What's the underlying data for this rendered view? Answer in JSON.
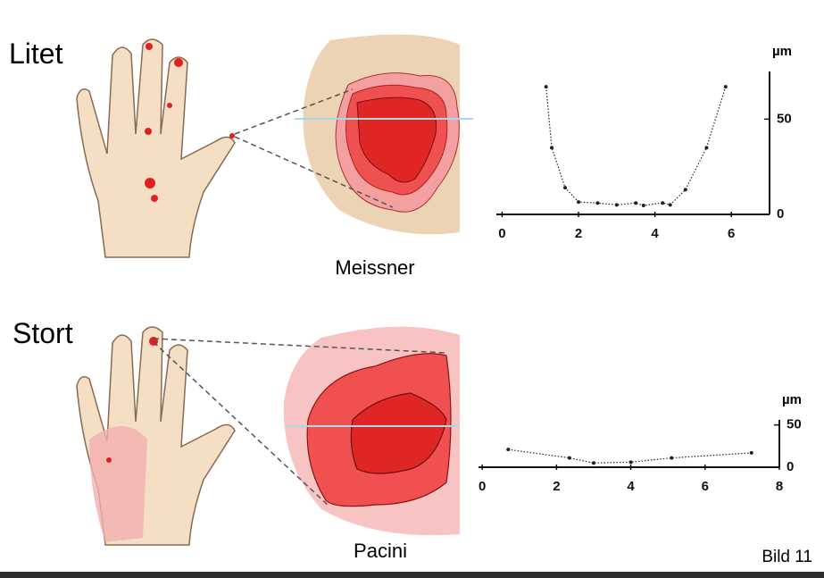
{
  "slide": {
    "labels": {
      "top": "Litet",
      "bottom": "Stort",
      "receptor_top": "Meissner",
      "receptor_bottom": "Pacini",
      "figure": "Bild 11"
    }
  },
  "chart_data": [
    {
      "type": "line",
      "y_label": "µm",
      "color": "#222222",
      "y_axis_side": "right",
      "x": [
        1.15,
        1.3,
        1.65,
        2.0,
        2.5,
        3.0,
        3.5,
        3.7,
        4.2,
        4.4,
        4.8,
        5.35,
        5.85
      ],
      "values": [
        67,
        35,
        14,
        6.5,
        6,
        5,
        6,
        4.7,
        6,
        5,
        13,
        35,
        67
      ],
      "xlim": [
        -0.15,
        7
      ],
      "xticks": [
        0,
        2,
        4,
        6
      ],
      "ylim": [
        0,
        75
      ],
      "yticks": [
        0,
        50
      ]
    },
    {
      "type": "line",
      "y_label": "µm",
      "color": "#222222",
      "y_axis_side": "right",
      "x": [
        0.7,
        2.35,
        3.0,
        4.0,
        5.1,
        7.25
      ],
      "values": [
        21,
        11,
        5,
        6,
        11,
        17
      ],
      "xlim": [
        -0.1,
        8
      ],
      "xticks": [
        0,
        2,
        4,
        6,
        8
      ],
      "ylim": [
        0,
        56
      ],
      "yticks": [
        0,
        50
      ]
    }
  ]
}
